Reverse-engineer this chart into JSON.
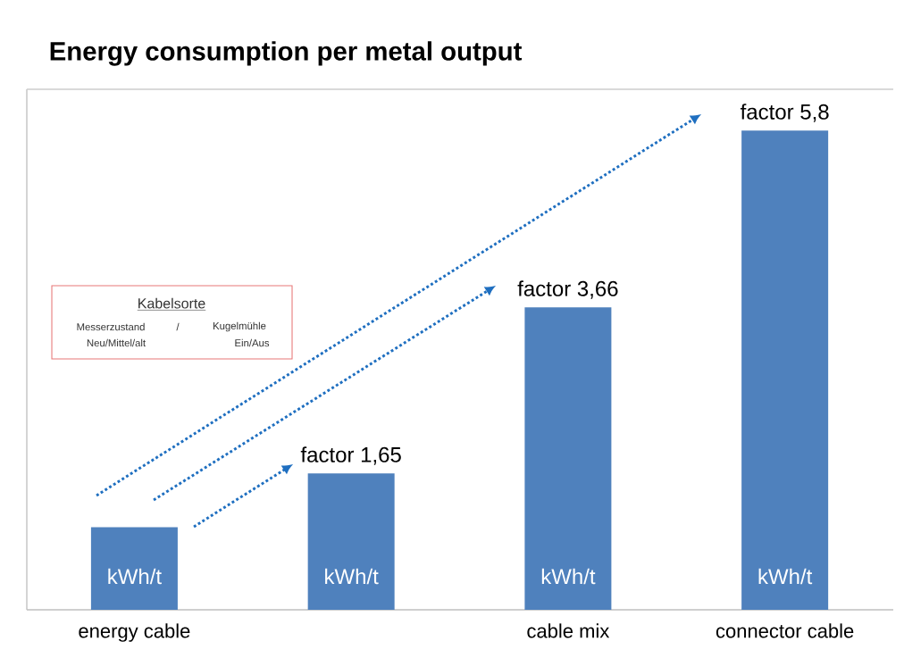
{
  "chart_data": {
    "type": "bar",
    "title": "Energy consumption per metal output",
    "categories": [
      "energy cable",
      null,
      "cable mix",
      "connector cable"
    ],
    "values": [
      1,
      1.65,
      3.66,
      5.8
    ],
    "ylim": [
      0,
      6.3
    ],
    "color": "#4f81bd",
    "value_labels": [
      null,
      "factor 1,65",
      "factor 3,66",
      "factor 5,8"
    ],
    "annotations": [
      "kWh/t",
      "kWh/t",
      "kWh/t",
      "kWh/t",
      "Kabelsorte",
      "Messerzustand",
      "/",
      "Kugelmühle",
      "Neu/Mittel/alt",
      "Ein/Aus"
    ]
  }
}
